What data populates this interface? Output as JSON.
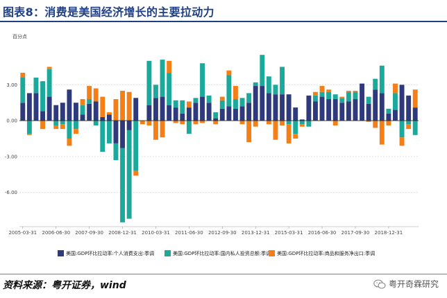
{
  "title": "图表8：消费是美国经济增长的主要拉动力",
  "source": "资料来源：粤开证券，wind",
  "brand": {
    "name": "粤开奇霖研究",
    "icon": "wechat-icon"
  },
  "colors": {
    "title": "#1f3f84",
    "consumption": "#2e3a7c",
    "investment": "#1aa99a",
    "exports": "#f57f17"
  },
  "chart_data": {
    "type": "bar",
    "stacked": true,
    "unit_label": "百分点",
    "ylim": [
      -8.8,
      5.8
    ],
    "yticks": [
      -6,
      -3,
      0,
      3
    ],
    "ytick_labels": [
      "-6.00",
      "-3.00",
      "0.00",
      "3.00"
    ],
    "xtick_labels": [
      {
        "i": 0,
        "label": "2005-03-31"
      },
      {
        "i": 5,
        "label": "2006-06-30"
      },
      {
        "i": 10,
        "label": "2007-09-30"
      },
      {
        "i": 15,
        "label": "2008-12-31"
      },
      {
        "i": 20,
        "label": "2010-03-31"
      },
      {
        "i": 25,
        "label": "2011-06-30"
      },
      {
        "i": 30,
        "label": "2012-09-30"
      },
      {
        "i": 35,
        "label": "2013-12-31"
      },
      {
        "i": 40,
        "label": "2015-03-31"
      },
      {
        "i": 45,
        "label": "2016-06-30"
      },
      {
        "i": 50,
        "label": "2017-09-30"
      },
      {
        "i": 55,
        "label": "2018-12-31"
      }
    ],
    "x_start": "2005-03-31",
    "x_frequency": "quarterly",
    "legend_position": "bottom",
    "series": [
      {
        "name": "美国:GDP环比拉动率:个人消费支出:季调",
        "color": "#2e3a7c",
        "values": [
          1.5,
          2.3,
          2.3,
          0.8,
          2.0,
          1.3,
          1.5,
          2.6,
          1.5,
          0.5,
          1.4,
          1.6,
          0.3,
          0.5,
          -1.9,
          -2.3,
          -0.8,
          1.9,
          0.0,
          1.3,
          1.9,
          2.0,
          1.3,
          1.1,
          0.6,
          1.1,
          1.5,
          2.0,
          1.5,
          0.2,
          1.0,
          1.2,
          1.0,
          1.2,
          1.5,
          2.9,
          2.9,
          2.3,
          2.2,
          2.2,
          2.2,
          1.1,
          0.1,
          2.1,
          1.6,
          2.0,
          1.8,
          1.8,
          1.5,
          1.6,
          1.8,
          3.1,
          1.4,
          2.6,
          2.3,
          0.6,
          0.9,
          3.0,
          2.1,
          1.1
        ]
      },
      {
        "name": "美国:GDP环比拉动率:国内私人投资总额:季调",
        "color": "#1aa99a",
        "values": [
          2.1,
          -1.1,
          1.3,
          2.5,
          2.3,
          -0.4,
          -0.3,
          -1.5,
          -0.7,
          0.8,
          0.4,
          -0.4,
          -2.6,
          -1.9,
          -1.4,
          -6.2,
          -7.4,
          -4.2,
          0.0,
          3.7,
          1.1,
          3.1,
          2.7,
          0.6,
          1.1,
          -1.1,
          0.4,
          2.8,
          0.6,
          0.5,
          0.7,
          2.6,
          0.8,
          0.7,
          0.8,
          0.3,
          2.6,
          1.4,
          0.8,
          2.3,
          -0.3,
          -1.1,
          -0.3,
          -0.5,
          0.5,
          0.4,
          0.6,
          0.4,
          0.4,
          0.8,
          0.6,
          0.0,
          0.6,
          0.9,
          2.3,
          0.4,
          1.4,
          -1.4,
          -0.3,
          -1.2
        ]
      },
      {
        "name": "美国:GDP环比拉动率:商品和服务净出口:季调",
        "color": "#f57f17",
        "values": [
          0.4,
          -0.1,
          0.0,
          -0.7,
          0.2,
          -0.3,
          -0.4,
          -0.6,
          -0.4,
          0.5,
          1.1,
          1.1,
          1.7,
          0.2,
          1.8,
          2.5,
          2.4,
          -0.4,
          -0.3,
          -0.4,
          -1.6,
          -1.4,
          1.0,
          -0.2,
          -0.3,
          0.5,
          -0.3,
          -0.2,
          0.0,
          -0.3,
          0.3,
          0.4,
          1.1,
          -0.3,
          -1.8,
          -0.5,
          0.0,
          -0.3,
          -1.6,
          -0.4,
          -1.6,
          -0.4,
          -0.2,
          0.0,
          0.3,
          0.5,
          0.2,
          -0.4,
          0.1,
          0.1,
          0.1,
          0.0,
          -0.1,
          -0.6,
          -2.0,
          -0.4,
          0.8,
          -0.7,
          -0.4,
          1.5
        ]
      }
    ]
  }
}
